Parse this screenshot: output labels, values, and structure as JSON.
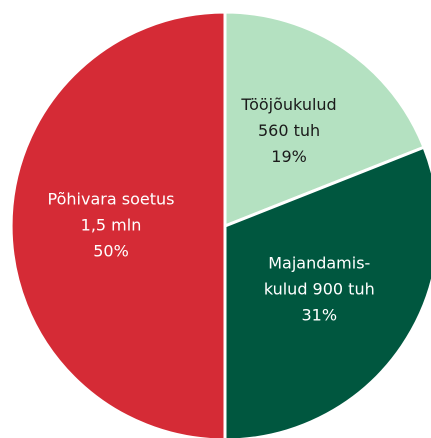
{
  "chart_data": {
    "type": "pie",
    "labels": [
      [
        "Tööjõukulud",
        "560 tuh"
      ],
      [
        "Majandamis-",
        "kulud 900 tuh"
      ],
      [
        "Põhivara soetus",
        "1,5 mln"
      ]
    ],
    "values": [
      19,
      31,
      50
    ],
    "value_labels": [
      "19%",
      "31%",
      "50%"
    ],
    "colors": [
      "#b4e1c1",
      "#00573f",
      "#d52b36"
    ],
    "text_colors": [
      "#1a1a1a",
      "#ffffff",
      "#ffffff"
    ]
  }
}
